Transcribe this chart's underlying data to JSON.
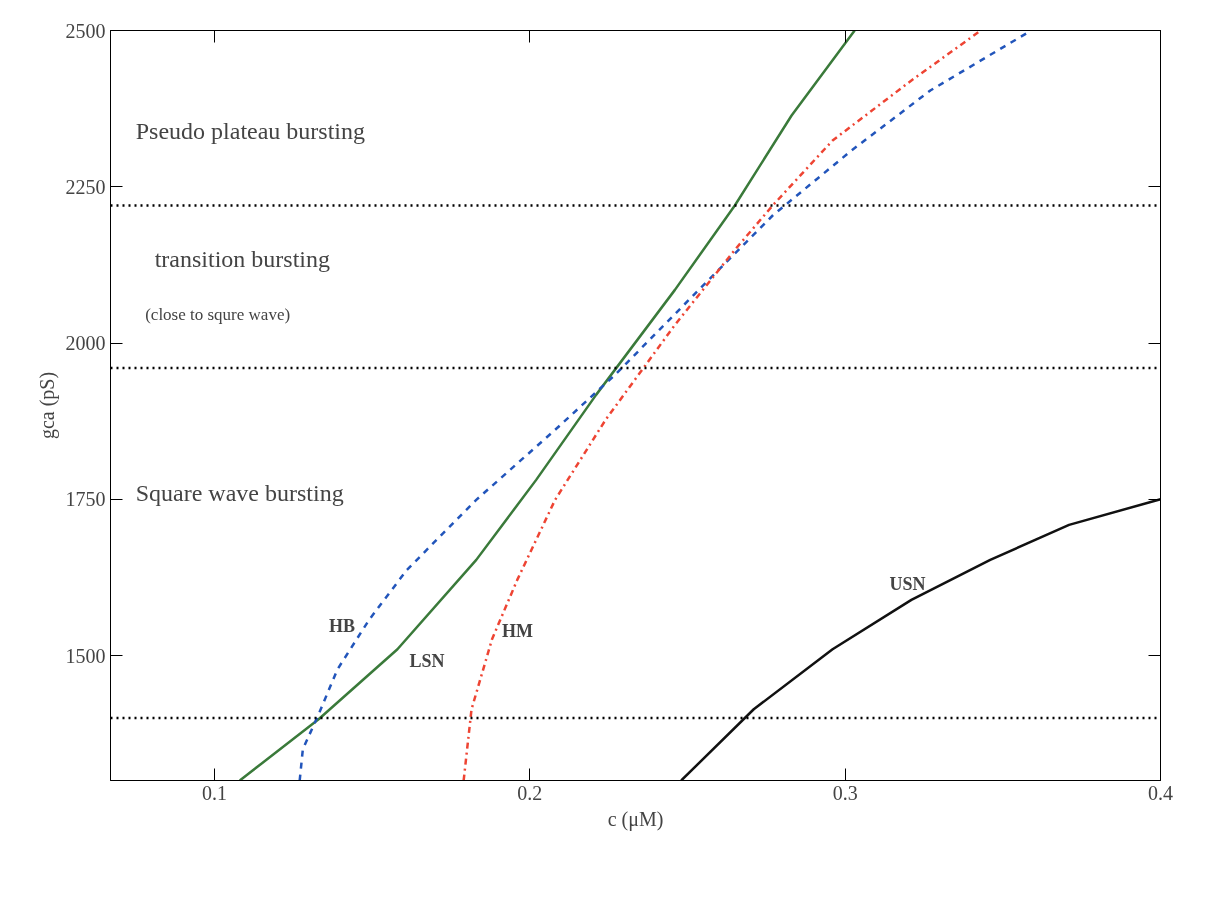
{
  "chart_data": {
    "type": "line",
    "xlabel": "c (μM)",
    "ylabel": "gca (pS)",
    "xlim": [
      0.067,
      0.4
    ],
    "ylim": [
      1300,
      2500
    ],
    "xticks": [
      0.1,
      0.2,
      0.3,
      0.4
    ],
    "yticks": [
      1500,
      1750,
      2000,
      2250,
      2500
    ],
    "grid": false,
    "marker": "none",
    "series": [
      {
        "name": "LSN",
        "color": "#3a7a3a",
        "line_style": "solid",
        "x": [
          0.108,
          0.133,
          0.158,
          0.183,
          0.202,
          0.221,
          0.246,
          0.265,
          0.283,
          0.303
        ],
        "values": [
          1300,
          1398,
          1510,
          1653,
          1781,
          1917,
          2085,
          2220,
          2364,
          2500
        ]
      },
      {
        "name": "HB",
        "color": "#2255bb",
        "line_style": "dashed",
        "x": [
          0.127,
          0.128,
          0.133,
          0.139,
          0.149,
          0.161,
          0.183,
          0.208,
          0.227,
          0.252,
          0.277,
          0.302,
          0.327,
          0.359
        ],
        "values": [
          1300,
          1350,
          1406,
          1478,
          1557,
          1637,
          1749,
          1861,
          1949,
          2077,
          2204,
          2308,
          2404,
          2500
        ]
      },
      {
        "name": "HM",
        "color": "#ee4433",
        "line_style": "dashdot",
        "x": [
          0.179,
          0.1815,
          0.188,
          0.196,
          0.208,
          0.224,
          0.246,
          0.265,
          0.277,
          0.296,
          0.321,
          0.343
        ],
        "values": [
          1300,
          1414,
          1526,
          1621,
          1749,
          1877,
          2029,
          2149,
          2220,
          2324,
          2420,
          2500
        ]
      },
      {
        "name": "USN",
        "color": "#111111",
        "line_style": "solid",
        "x": [
          0.248,
          0.271,
          0.296,
          0.321,
          0.346,
          0.371,
          0.4
        ],
        "values": [
          1300,
          1414,
          1510,
          1589,
          1653,
          1709,
          1750
        ]
      }
    ],
    "ref_lines": [
      {
        "axis": "y",
        "value": 2220,
        "label": null,
        "color": "#000000",
        "line_style": "dotted"
      },
      {
        "axis": "y",
        "value": 1960,
        "label": null,
        "color": "#000000",
        "line_style": "dotted"
      },
      {
        "axis": "y",
        "value": 1400,
        "label": null,
        "color": "#000000",
        "line_style": "dotted"
      }
    ],
    "annotations": [
      "Pseudo plateau bursting",
      "transition bursting",
      "(close to squre wave)",
      "Square wave bursting"
    ]
  }
}
